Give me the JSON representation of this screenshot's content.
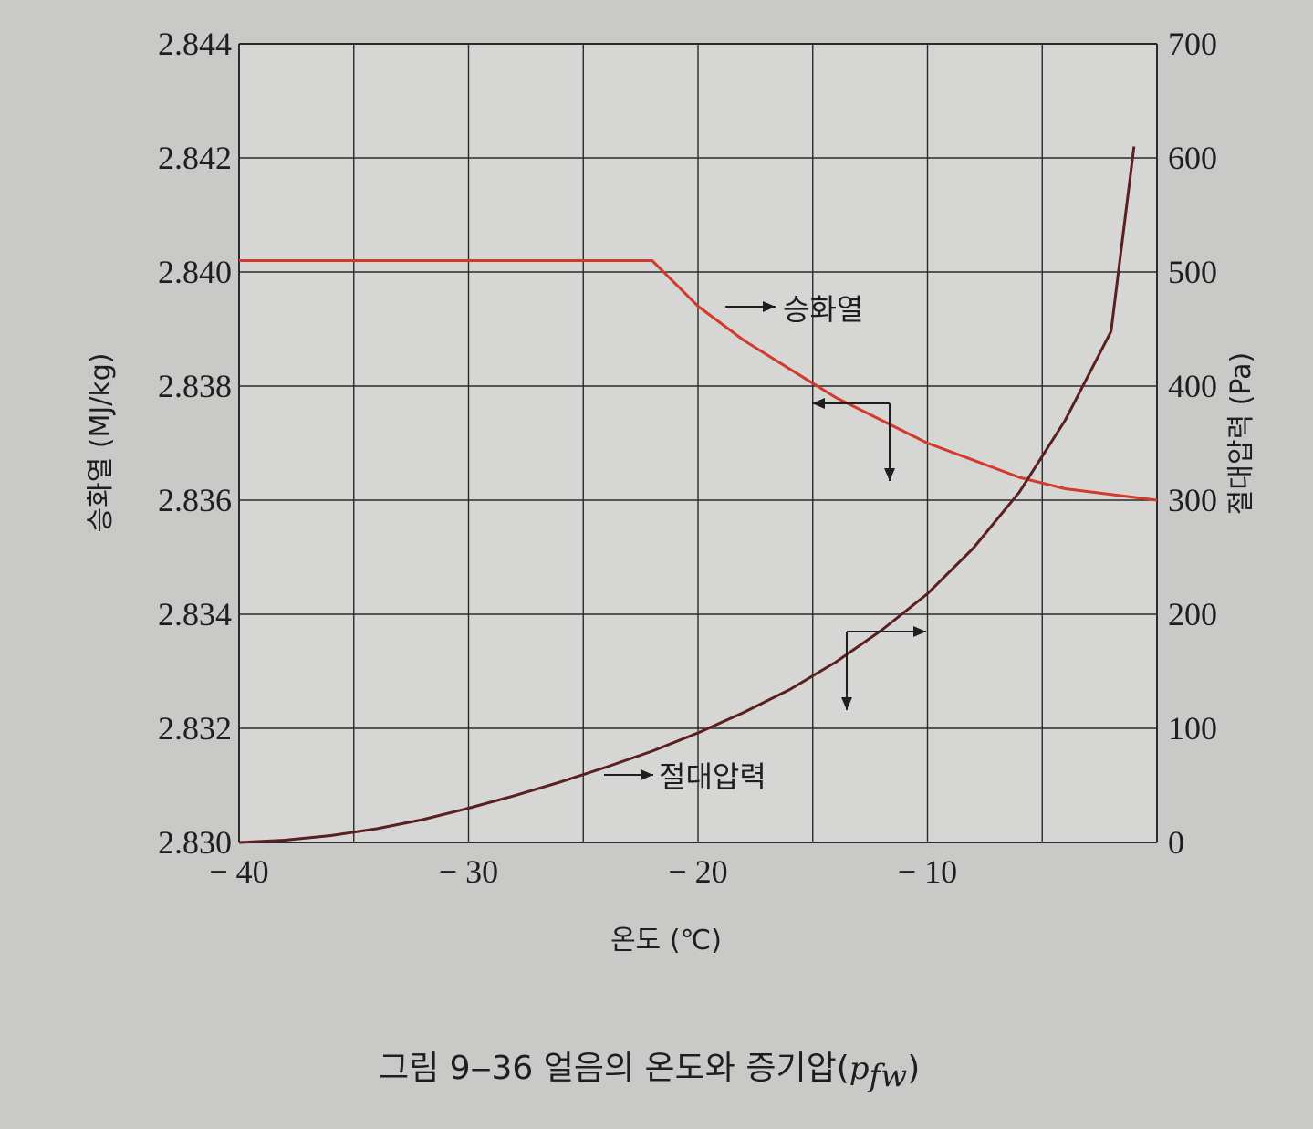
{
  "chart_data": {
    "type": "line",
    "xlabel": "온도 (℃)",
    "ylabel_left": "승화열 (MJ/kg)",
    "ylabel_right": "절대압력 (Pa)",
    "xlim": [
      -40,
      0
    ],
    "ylim_left": [
      2.83,
      2.844
    ],
    "ylim_right": [
      0,
      700
    ],
    "x_ticks": [
      {
        "value": -40,
        "label": "− 40"
      },
      {
        "value": -30,
        "label": "− 30"
      },
      {
        "value": -20,
        "label": "− 20"
      },
      {
        "value": -10,
        "label": "− 10"
      }
    ],
    "y_left_ticks": [
      "2.830",
      "2.832",
      "2.834",
      "2.836",
      "2.838",
      "2.840",
      "2.842",
      "2.844"
    ],
    "y_right_ticks": [
      "0",
      "100",
      "200",
      "300",
      "400",
      "500",
      "600",
      "700"
    ],
    "grid": true,
    "series": [
      {
        "name": "승화열",
        "axis": "left",
        "color": "#d13a2c",
        "x": [
          -40,
          -35,
          -30,
          -25,
          -22,
          -20,
          -18,
          -16,
          -14,
          -12,
          -10,
          -8,
          -6,
          -4,
          -2,
          0
        ],
        "y": [
          2.8402,
          2.8402,
          2.8402,
          2.8402,
          2.8402,
          2.8394,
          2.8388,
          2.8383,
          2.8378,
          2.8374,
          2.837,
          2.8367,
          2.8364,
          2.8362,
          2.8361,
          2.836
        ]
      },
      {
        "name": "절대압력",
        "axis": "right",
        "color": "#5a1f1f",
        "x": [
          -40,
          -38,
          -36,
          -34,
          -32,
          -30,
          -28,
          -26,
          -24,
          -22,
          -20,
          -18,
          -16,
          -14,
          -12,
          -10,
          -8,
          -6,
          -4,
          -2,
          -1
        ],
        "y": [
          0,
          2,
          6,
          12,
          20,
          30,
          41,
          53,
          66,
          80,
          96,
          114,
          134,
          158,
          186,
          218,
          258,
          307,
          370,
          448,
          610
        ]
      }
    ],
    "annotations": [
      "승화열",
      "절대압력"
    ]
  },
  "caption": {
    "prefix": "그림 9‒36   얼음의 온도와 증기압(",
    "variable": "p",
    "subscript": "fw",
    "suffix": ")"
  }
}
